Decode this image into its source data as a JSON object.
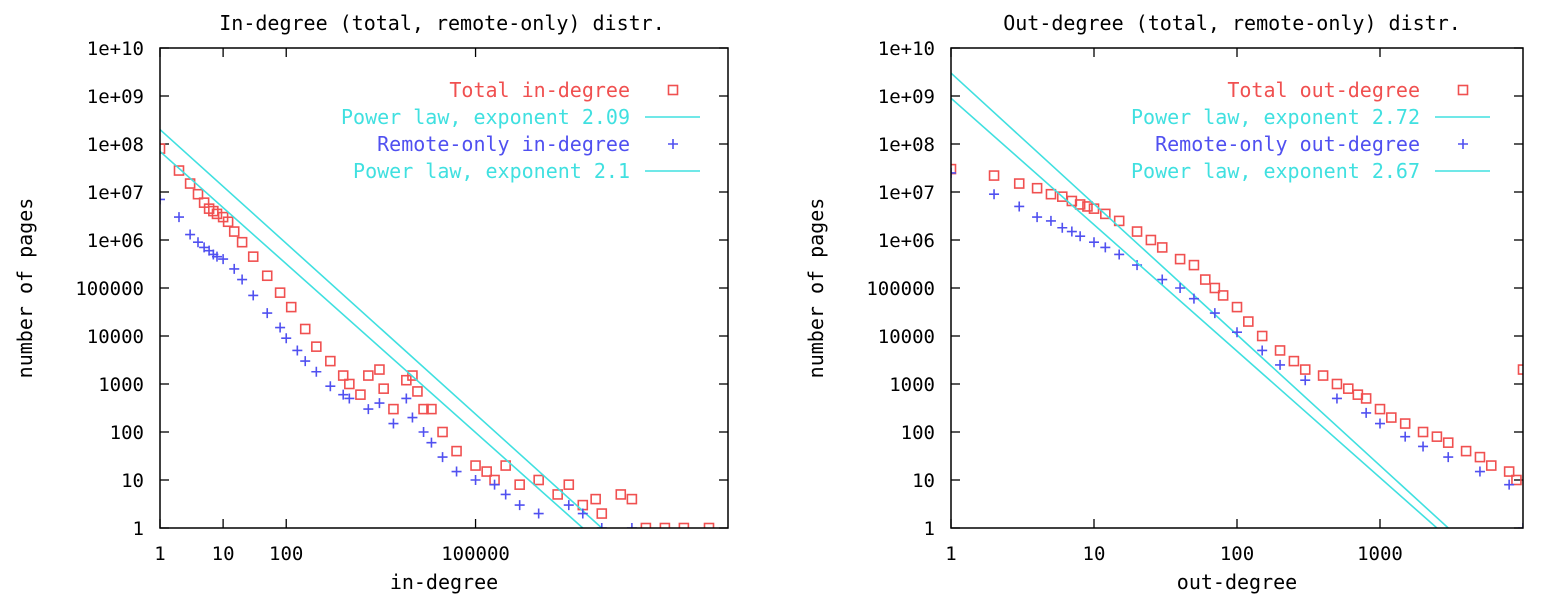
{
  "colors": {
    "total": "#f05050",
    "remote": "#5050f0",
    "fit": "#40e0e0",
    "axis": "#000000",
    "background": "#ffffff"
  },
  "chart_data": [
    {
      "type": "scatter",
      "title": "In-degree (total, remote-only) distr.",
      "xlabel": "in-degree",
      "ylabel": "number of pages",
      "xscale": "log",
      "yscale": "log",
      "xlim": [
        1,
        1000000000
      ],
      "ylim": [
        1,
        10000000000
      ],
      "grid": false,
      "legend_position": "top-right",
      "x_ticks": [
        {
          "value": 1,
          "label": "1"
        },
        {
          "value": 10,
          "label": "10"
        },
        {
          "value": 100,
          "label": "100"
        },
        {
          "value": 100000,
          "label": "100000"
        }
      ],
      "y_ticks": [
        {
          "value": 1,
          "label": "1"
        },
        {
          "value": 10,
          "label": "10"
        },
        {
          "value": 100,
          "label": "100"
        },
        {
          "value": 1000,
          "label": "1000"
        },
        {
          "value": 10000,
          "label": "10000"
        },
        {
          "value": 100000,
          "label": "100000"
        },
        {
          "value": 1000000,
          "label": "1e+06"
        },
        {
          "value": 10000000,
          "label": "1e+07"
        },
        {
          "value": 100000000,
          "label": "1e+08"
        },
        {
          "value": 1000000000,
          "label": "1e+09"
        },
        {
          "value": 10000000000,
          "label": "1e+10"
        }
      ],
      "series": [
        {
          "name": "Total in-degree",
          "kind": "points",
          "marker": "square",
          "color": "#f05050",
          "points": [
            [
              1,
              80000000
            ],
            [
              2,
              28000000
            ],
            [
              3,
              15000000
            ],
            [
              4,
              9000000
            ],
            [
              5,
              6000000
            ],
            [
              6,
              4500000
            ],
            [
              7,
              4000000
            ],
            [
              8,
              3500000
            ],
            [
              10,
              3000000
            ],
            [
              12,
              2400000
            ],
            [
              15,
              1500000
            ],
            [
              20,
              900000
            ],
            [
              30,
              450000
            ],
            [
              50,
              180000
            ],
            [
              80,
              80000
            ],
            [
              120,
              40000
            ],
            [
              200,
              14000
            ],
            [
              300,
              6000
            ],
            [
              500,
              3000
            ],
            [
              800,
              1500
            ],
            [
              1000,
              1000
            ],
            [
              1500,
              600
            ],
            [
              2000,
              1500
            ],
            [
              3000,
              2000
            ],
            [
              3500,
              800
            ],
            [
              5000,
              300
            ],
            [
              8000,
              1200
            ],
            [
              10000,
              1500
            ],
            [
              12000,
              700
            ],
            [
              15000,
              300
            ],
            [
              20000,
              300
            ],
            [
              30000,
              100
            ],
            [
              50000,
              40
            ],
            [
              100000,
              20
            ],
            [
              150000,
              15
            ],
            [
              200000,
              10
            ],
            [
              300000,
              20
            ],
            [
              500000,
              8
            ],
            [
              1000000,
              10
            ],
            [
              2000000,
              5
            ],
            [
              3000000,
              8
            ],
            [
              5000000,
              3
            ],
            [
              8000000,
              4
            ],
            [
              10000000,
              2
            ],
            [
              20000000,
              5
            ],
            [
              30000000,
              4
            ],
            [
              50000000,
              1
            ],
            [
              100000000,
              1
            ],
            [
              200000000,
              1
            ],
            [
              500000000,
              1
            ]
          ]
        },
        {
          "name": "Power law, exponent 2.09",
          "kind": "line",
          "color": "#40e0e0",
          "points": [
            [
              1,
              200000000
            ],
            [
              10000000,
              1
            ]
          ]
        },
        {
          "name": "Remote-only in-degree",
          "kind": "points",
          "marker": "plus",
          "color": "#5050f0",
          "points": [
            [
              1,
              7000000
            ],
            [
              2,
              3000000
            ],
            [
              3,
              1300000
            ],
            [
              4,
              900000
            ],
            [
              5,
              700000
            ],
            [
              6,
              600000
            ],
            [
              7,
              500000
            ],
            [
              8,
              450000
            ],
            [
              10,
              400000
            ],
            [
              15,
              250000
            ],
            [
              20,
              150000
            ],
            [
              30,
              70000
            ],
            [
              50,
              30000
            ],
            [
              80,
              15000
            ],
            [
              100,
              9000
            ],
            [
              150,
              5000
            ],
            [
              200,
              3000
            ],
            [
              300,
              1800
            ],
            [
              500,
              900
            ],
            [
              800,
              600
            ],
            [
              1000,
              500
            ],
            [
              2000,
              300
            ],
            [
              3000,
              400
            ],
            [
              5000,
              150
            ],
            [
              8000,
              500
            ],
            [
              10000,
              200
            ],
            [
              15000,
              100
            ],
            [
              20000,
              60
            ],
            [
              30000,
              30
            ],
            [
              50000,
              15
            ],
            [
              100000,
              10
            ],
            [
              200000,
              8
            ],
            [
              300000,
              5
            ],
            [
              500000,
              3
            ],
            [
              1000000,
              2
            ],
            [
              3000000,
              3
            ],
            [
              5000000,
              2
            ],
            [
              10000000,
              1
            ],
            [
              30000000,
              1
            ]
          ]
        },
        {
          "name": "Power law, exponent 2.1",
          "kind": "line",
          "color": "#40e0e0",
          "points": [
            [
              1,
              70000000
            ],
            [
              5000000,
              1
            ]
          ]
        }
      ]
    },
    {
      "type": "scatter",
      "title": "Out-degree (total, remote-only) distr.",
      "xlabel": "out-degree",
      "ylabel": "number of pages",
      "xscale": "log",
      "yscale": "log",
      "xlim": [
        1,
        10000
      ],
      "ylim": [
        1,
        10000000000
      ],
      "grid": false,
      "legend_position": "top-right",
      "x_ticks": [
        {
          "value": 1,
          "label": "1"
        },
        {
          "value": 10,
          "label": "10"
        },
        {
          "value": 100,
          "label": "100"
        },
        {
          "value": 1000,
          "label": "1000"
        }
      ],
      "y_ticks": [
        {
          "value": 1,
          "label": "1"
        },
        {
          "value": 10,
          "label": "10"
        },
        {
          "value": 100,
          "label": "100"
        },
        {
          "value": 1000,
          "label": "1000"
        },
        {
          "value": 10000,
          "label": "10000"
        },
        {
          "value": 100000,
          "label": "100000"
        },
        {
          "value": 1000000,
          "label": "1e+06"
        },
        {
          "value": 10000000,
          "label": "1e+07"
        },
        {
          "value": 100000000,
          "label": "1e+08"
        },
        {
          "value": 1000000000,
          "label": "1e+09"
        },
        {
          "value": 10000000000,
          "label": "1e+10"
        }
      ],
      "series": [
        {
          "name": "Total out-degree",
          "kind": "points",
          "marker": "square",
          "color": "#f05050",
          "points": [
            [
              1,
              30000000
            ],
            [
              2,
              22000000
            ],
            [
              3,
              15000000
            ],
            [
              4,
              12000000
            ],
            [
              5,
              9000000
            ],
            [
              6,
              8000000
            ],
            [
              7,
              6500000
            ],
            [
              8,
              5500000
            ],
            [
              9,
              5000000
            ],
            [
              10,
              4500000
            ],
            [
              12,
              3500000
            ],
            [
              15,
              2500000
            ],
            [
              20,
              1500000
            ],
            [
              25,
              1000000
            ],
            [
              30,
              700000
            ],
            [
              40,
              400000
            ],
            [
              50,
              300000
            ],
            [
              60,
              150000
            ],
            [
              70,
              100000
            ],
            [
              80,
              70000
            ],
            [
              100,
              40000
            ],
            [
              120,
              20000
            ],
            [
              150,
              10000
            ],
            [
              200,
              5000
            ],
            [
              250,
              3000
            ],
            [
              300,
              2000
            ],
            [
              400,
              1500
            ],
            [
              500,
              1000
            ],
            [
              600,
              800
            ],
            [
              700,
              600
            ],
            [
              800,
              500
            ],
            [
              1000,
              300
            ],
            [
              1200,
              200
            ],
            [
              1500,
              150
            ],
            [
              2000,
              100
            ],
            [
              2500,
              80
            ],
            [
              3000,
              60
            ],
            [
              4000,
              40
            ],
            [
              5000,
              30
            ],
            [
              6000,
              20
            ],
            [
              8000,
              15
            ],
            [
              9000,
              10
            ],
            [
              10000,
              2000
            ]
          ]
        },
        {
          "name": "Power law, exponent 2.72",
          "kind": "line",
          "color": "#40e0e0",
          "points": [
            [
              1,
              3000000000
            ],
            [
              3000,
              1
            ]
          ]
        },
        {
          "name": "Remote-only out-degree",
          "kind": "points",
          "marker": "plus",
          "color": "#5050f0",
          "points": [
            [
              1,
              25000000
            ],
            [
              2,
              9000000
            ],
            [
              3,
              5000000
            ],
            [
              4,
              3000000
            ],
            [
              5,
              2500000
            ],
            [
              6,
              1800000
            ],
            [
              7,
              1500000
            ],
            [
              8,
              1200000
            ],
            [
              10,
              900000
            ],
            [
              12,
              700000
            ],
            [
              15,
              500000
            ],
            [
              20,
              300000
            ],
            [
              30,
              150000
            ],
            [
              40,
              100000
            ],
            [
              50,
              60000
            ],
            [
              70,
              30000
            ],
            [
              100,
              12000
            ],
            [
              150,
              5000
            ],
            [
              200,
              2500
            ],
            [
              300,
              1200
            ],
            [
              500,
              500
            ],
            [
              800,
              250
            ],
            [
              1000,
              150
            ],
            [
              1500,
              80
            ],
            [
              2000,
              50
            ],
            [
              3000,
              30
            ],
            [
              5000,
              15
            ],
            [
              8000,
              8
            ],
            [
              10000,
              1
            ]
          ]
        },
        {
          "name": "Power law, exponent 2.67",
          "kind": "line",
          "color": "#40e0e0",
          "points": [
            [
              1,
              900000000
            ],
            [
              2500,
              1
            ]
          ]
        }
      ]
    }
  ]
}
